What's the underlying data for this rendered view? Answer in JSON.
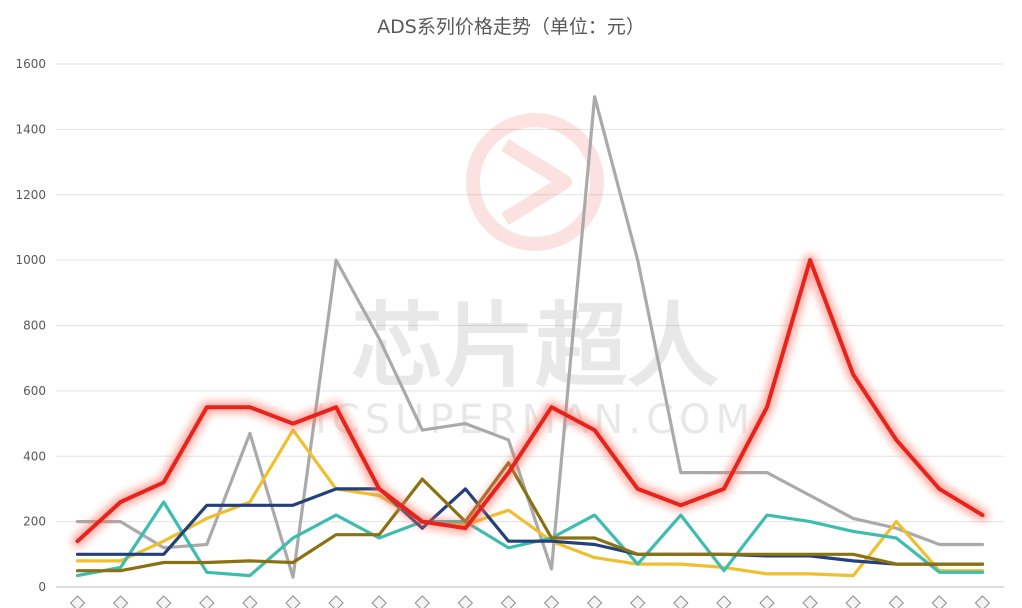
{
  "chart_data": {
    "type": "line",
    "title": "ADS系列价格走势（单位：元）",
    "xlabel": "",
    "ylabel": "",
    "ylim": [
      0,
      1600
    ],
    "yticks": [
      0,
      200,
      400,
      600,
      800,
      1000,
      1200,
      1400,
      1600
    ],
    "grid": true,
    "legend": "none",
    "categories": [
      "",
      "",
      "",
      "",
      "",
      "",
      "",
      "",
      "",
      "",
      "",
      "",
      "",
      "",
      "",
      "",
      "",
      "",
      "",
      "",
      "",
      ""
    ],
    "series": [
      {
        "color": "#e8231c",
        "highlighted": true,
        "values": [
          140,
          260,
          320,
          550,
          550,
          500,
          550,
          300,
          200,
          180,
          350,
          550,
          480,
          300,
          250,
          300,
          550,
          1000,
          650,
          450,
          300,
          220
        ]
      },
      {
        "color": "#aaaaaa",
        "values": [
          200,
          200,
          120,
          130,
          470,
          30,
          1000,
          760,
          480,
          500,
          450,
          55,
          1500,
          1000,
          350,
          350,
          350,
          280,
          210,
          180,
          130,
          130
        ]
      },
      {
        "color": "#efbf2e",
        "values": [
          80,
          80,
          140,
          210,
          260,
          480,
          300,
          280,
          200,
          190,
          235,
          140,
          90,
          70,
          70,
          60,
          40,
          40,
          35,
          200,
          50,
          50
        ]
      },
      {
        "color": "#3dbcb0",
        "values": [
          35,
          60,
          260,
          45,
          35,
          150,
          220,
          150,
          200,
          200,
          120,
          150,
          220,
          70,
          220,
          50,
          220,
          200,
          170,
          150,
          45,
          45
        ]
      },
      {
        "color": "#23407a",
        "values": [
          100,
          100,
          100,
          250,
          250,
          250,
          300,
          300,
          180,
          300,
          140,
          140,
          130,
          100,
          100,
          100,
          95,
          95,
          80,
          70,
          70,
          70
        ]
      },
      {
        "color": "#8a7113",
        "values": [
          50,
          50,
          75,
          75,
          80,
          75,
          160,
          160,
          330,
          200,
          380,
          150,
          150,
          100,
          100,
          100,
          100,
          100,
          100,
          70,
          70,
          70
        ]
      }
    ]
  },
  "watermark": {
    "chinese": "芯片超人",
    "latin": "ICSUPERMAN.COM",
    "color": "#e8231c"
  }
}
